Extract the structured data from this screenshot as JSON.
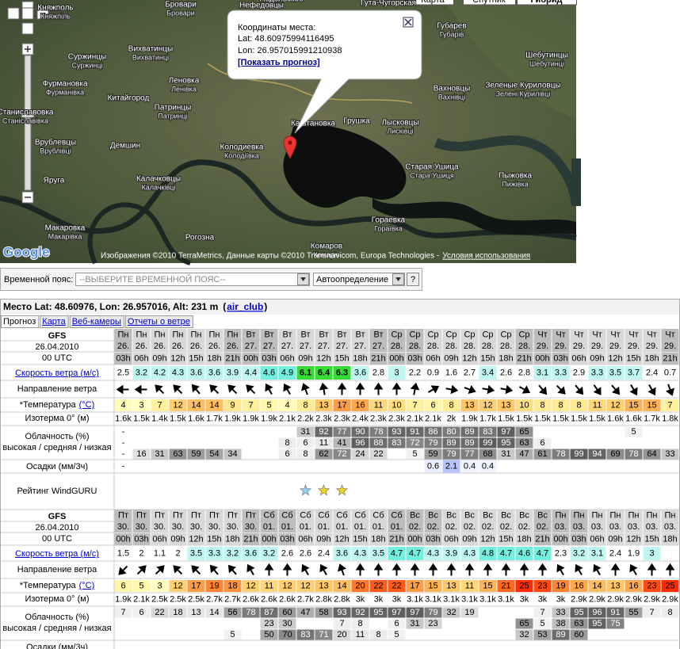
{
  "map": {
    "buttons": [
      "Карта",
      "Спутник",
      "Гибрид"
    ],
    "places": [
      {
        "name": "Княжполь",
        "local": "Княжпіль"
      },
      {
        "name": "Бровари",
        "local": "Бровари"
      },
      {
        "name": "Нефедовцы",
        "local": "Нефедівці"
      },
      {
        "name": "Подольское"
      },
      {
        "name": "Гута-Чугорская"
      },
      {
        "name": "Губарев",
        "local": "Губарів"
      },
      {
        "name": "Вихватинцы",
        "local": "Вихватинці"
      },
      {
        "name": "Суржинцы",
        "local": "Суржинці"
      },
      {
        "name": "Шебутинцы",
        "local": "Шебутинці"
      },
      {
        "name": "Фурмановка",
        "local": "Фурманівка"
      },
      {
        "name": "Леновка",
        "local": "Ленівка"
      },
      {
        "name": "Вахновцы",
        "local": "Вахнівці"
      },
      {
        "name": "Зеленые Куриловцы",
        "local": "Зелені Курилівці"
      },
      {
        "name": "Китайгород"
      },
      {
        "name": "Патринцы",
        "local": "Патринці"
      },
      {
        "name": "Станиславовка",
        "local": "Станіславівка"
      },
      {
        "name": "Врублевцы",
        "local": "Врублівці"
      },
      {
        "name": "Демшин"
      },
      {
        "name": "Колодиевка",
        "local": "Колодіївка"
      },
      {
        "name": "Каштановка"
      },
      {
        "name": "Грушка"
      },
      {
        "name": "Лысковцы",
        "local": "Лисківці"
      },
      {
        "name": "Старая Ушица",
        "local": "Стара Ушиця"
      },
      {
        "name": "Пыжовка",
        "local": "Пижівка"
      },
      {
        "name": "Яруга"
      },
      {
        "name": "Калачковцы",
        "local": "Калачківці"
      },
      {
        "name": "Гораевка",
        "local": "Гораївка"
      },
      {
        "name": "Макаровка",
        "local": "Макарівка"
      },
      {
        "name": "Рогозна"
      },
      {
        "name": "Комаров",
        "local": "Комарів"
      }
    ],
    "popup": {
      "title": "Координаты места:",
      "lat": "Lat: 48.60975994116495",
      "lon": "Lon: 26.957015991210938",
      "link": "[Показать прогноз]"
    },
    "logo": "Google",
    "attribution": "Изображения ©2010 TerraMetrics, Данные карты ©2010 Transnavicom, Europa Technologies -",
    "terms": "Условия использования"
  },
  "timezone": {
    "label": "Временной пояс:",
    "select": "--ВЫБЕРИТЕ ВРЕМЕННОЙ ПОЯС--",
    "auto": "Автоопределение",
    "help": "?"
  },
  "forecast": {
    "header": "Место Lat: 48.60976, Lon: 26.957016, Alt: 231 m",
    "link_open": "(",
    "link": "air_club",
    "link_close": ")",
    "tabs": [
      "Прогноз",
      "Карта",
      "Веб-камеры",
      "Отчеты о ветре"
    ],
    "row_labels": {
      "wind": "Скорость ветра (м/с)",
      "direction": "Направление ветра",
      "temperature": "*Температура",
      "temperature_unit": "(°C)",
      "isotherm": "Изотерма 0° (м)",
      "cloud_title": "Облачность (%)",
      "cloud_levels": "высокая / средняя / низкая",
      "precipitation": "Осадки (мм/3ч)",
      "rating": "Рейтинг WindGURU"
    },
    "tables": [
      {
        "model": "GFS",
        "date": "26.04.2010",
        "time": "00 UTC",
        "days": [
          "Пн",
          "Пн",
          "Пн",
          "Пн",
          "Пн",
          "Пн",
          "Пн",
          "Вт",
          "Вт",
          "Вт",
          "Вт",
          "Вт",
          "Вт",
          "Вт",
          "Вт",
          "Ср",
          "Ср",
          "Ср",
          "Ср",
          "Ср",
          "Ср",
          "Ср",
          "Ср",
          "Чт",
          "Чт",
          "Чт",
          "Чт",
          "Чт",
          "Чт",
          "Чт",
          "Чт"
        ],
        "dates": [
          "26.",
          "26.",
          "26.",
          "26.",
          "26.",
          "26.",
          "26.",
          "27.",
          "27.",
          "27.",
          "27.",
          "27.",
          "27.",
          "27.",
          "27.",
          "28.",
          "28.",
          "28.",
          "28.",
          "28.",
          "28.",
          "28.",
          "28.",
          "29.",
          "29.",
          "29.",
          "29.",
          "29.",
          "29.",
          "29.",
          "29."
        ],
        "hours": [
          "03h",
          "06h",
          "09h",
          "12h",
          "15h",
          "18h",
          "21h",
          "00h",
          "03h",
          "06h",
          "09h",
          "12h",
          "15h",
          "18h",
          "21h",
          "00h",
          "03h",
          "06h",
          "09h",
          "12h",
          "15h",
          "18h",
          "21h",
          "00h",
          "03h",
          "06h",
          "09h",
          "12h",
          "15h",
          "18h",
          "21h"
        ],
        "wind": [
          2.5,
          3.2,
          4.2,
          4.3,
          3.6,
          3.6,
          3.9,
          4.4,
          4.6,
          4.9,
          6.1,
          6.4,
          6.3,
          3.6,
          2.8,
          3,
          2.2,
          0.9,
          1.6,
          2.7,
          3.4,
          2.6,
          2.8,
          3.1,
          3.3,
          2.9,
          3.3,
          3.5,
          3.7,
          2.4,
          0.7
        ],
        "direction": [
          270,
          270,
          315,
          315,
          320,
          315,
          315,
          315,
          330,
          330,
          340,
          350,
          0,
          0,
          0,
          0,
          10,
          60,
          100,
          110,
          100,
          100,
          120,
          140,
          135,
          140,
          145,
          140,
          150,
          150,
          160
        ],
        "temperature": [
          4,
          3,
          7,
          12,
          14,
          14,
          9,
          7,
          5,
          4,
          8,
          13,
          17,
          16,
          11,
          10,
          7,
          6,
          8,
          13,
          12,
          13,
          10,
          8,
          8,
          8,
          11,
          12,
          15,
          15,
          7
        ],
        "isotherm": [
          "1.6k",
          "1.5k",
          "1.4k",
          "1.5k",
          "1.6k",
          "1.7k",
          "1.9k",
          "1.9k",
          "1.9k",
          "2.1k",
          "2.2k",
          "2.3k",
          "2.3k",
          "2.4k",
          "2.3k",
          "2.3k",
          "2.1k",
          "2.1k",
          "2k",
          "1.9k",
          "1.7k",
          "1.5k",
          "1.5k",
          "1.5k",
          "1.5k",
          "1.5k",
          "1.5k",
          "1.6k",
          "1.6k",
          "1.7k",
          "1.8k"
        ],
        "cloud_high": [
          "-",
          null,
          null,
          null,
          null,
          null,
          null,
          null,
          null,
          null,
          "31",
          "92",
          "77",
          "90",
          "78",
          "93",
          "91",
          "86",
          "80",
          "89",
          "83",
          "97",
          "65",
          null,
          null,
          null,
          null,
          null,
          "5",
          null,
          null
        ],
        "cloud_mid": [
          "-",
          null,
          null,
          null,
          null,
          null,
          null,
          null,
          null,
          "8",
          "6",
          "11",
          "41",
          "96",
          "88",
          "83",
          "72",
          "79",
          "89",
          "89",
          "99",
          "95",
          "63",
          "6",
          null,
          null,
          null,
          null,
          null,
          null,
          null
        ],
        "cloud_low": [
          "-",
          "16",
          "31",
          "63",
          "59",
          "54",
          "34",
          null,
          null,
          "6",
          "8",
          "62",
          "72",
          "24",
          "22",
          null,
          "5",
          "59",
          "79",
          "77",
          "68",
          "31",
          "47",
          "61",
          "78",
          "99",
          "94",
          "69",
          "78",
          "64",
          "33"
        ],
        "precipitation": [
          "-",
          null,
          null,
          null,
          null,
          null,
          null,
          null,
          null,
          null,
          null,
          null,
          null,
          null,
          null,
          null,
          null,
          0.6,
          2.1,
          0.4,
          0.4,
          null,
          null,
          null,
          null,
          null,
          null,
          null,
          null,
          null,
          null
        ],
        "rating": [
          null,
          null,
          null,
          null,
          null,
          null,
          null,
          null,
          null,
          null,
          1,
          2,
          2,
          null,
          null,
          null,
          null,
          null,
          null,
          null,
          null,
          null,
          null,
          null,
          null,
          null,
          null,
          null,
          null,
          null,
          null
        ]
      },
      {
        "model": "GFS",
        "date": "26.04.2010",
        "time": "00 UTC",
        "days": [
          "Пт",
          "Пт",
          "Пт",
          "Пт",
          "Пт",
          "Пт",
          "Пт",
          "Пт",
          "Сб",
          "Сб",
          "Сб",
          "Сб",
          "Сб",
          "Сб",
          "Сб",
          "Сб",
          "Вс",
          "Вс",
          "Вс",
          "Вс",
          "Вс",
          "Вс",
          "Вс",
          "Вс",
          "Пн",
          "Пн",
          "Пн",
          "Пн",
          "Пн",
          "Пн",
          "Пн"
        ],
        "dates": [
          "30.",
          "30.",
          "30.",
          "30.",
          "30.",
          "30.",
          "30.",
          "30.",
          "01.",
          "01.",
          "01.",
          "01.",
          "01.",
          "01.",
          "01.",
          "01.",
          "02.",
          "02.",
          "02.",
          "02.",
          "02.",
          "02.",
          "02.",
          "02.",
          "03.",
          "03.",
          "03.",
          "03.",
          "03.",
          "03.",
          "03."
        ],
        "hours": [
          "00h",
          "03h",
          "06h",
          "09h",
          "12h",
          "15h",
          "18h",
          "21h",
          "00h",
          "03h",
          "06h",
          "09h",
          "12h",
          "15h",
          "18h",
          "21h",
          "00h",
          "03h",
          "06h",
          "09h",
          "12h",
          "15h",
          "18h",
          "21h",
          "00h",
          "03h",
          "06h",
          "09h",
          "12h",
          "15h",
          "18h"
        ],
        "wind": [
          1.5,
          2,
          1.1,
          2,
          3.5,
          3.3,
          3.2,
          3.6,
          3.2,
          2.6,
          2.6,
          2.4,
          3.6,
          4.3,
          3.5,
          4.7,
          4.7,
          4.3,
          3.9,
          4.3,
          4.8,
          4.7,
          4.6,
          4.7,
          2.3,
          3.2,
          3.1,
          2.4,
          1.9,
          3,
          null
        ],
        "direction": [
          225,
          45,
          45,
          315,
          315,
          320,
          320,
          330,
          0,
          0,
          330,
          330,
          340,
          0,
          0,
          0,
          0,
          0,
          0,
          0,
          0,
          0,
          0,
          0,
          330,
          330,
          330,
          0,
          330,
          0,
          0
        ],
        "temperature": [
          6,
          5,
          3,
          12,
          17,
          19,
          18,
          12,
          11,
          12,
          12,
          13,
          14,
          20,
          22,
          22,
          17,
          15,
          13,
          11,
          15,
          21,
          25,
          23,
          19,
          16,
          14,
          13,
          16,
          23,
          25
        ],
        "isotherm": [
          "1.9k",
          "2.1k",
          "2.5k",
          "2.5k",
          "2.5k",
          "2.7k",
          "2.7k",
          "2.6k",
          "2.6k",
          "2.6k",
          "2.7k",
          "2.8k",
          "2.8k",
          "3k",
          "3k",
          "3k",
          "3.1k",
          "3.1k",
          "3.1k",
          "3.1k",
          "3.1k",
          "3.1k",
          "3k",
          "3k",
          "3k",
          "2.9k",
          "2.9k",
          "2.9k",
          "2.9k",
          "2.9k",
          "2.9k"
        ],
        "cloud_high": [
          "7",
          "6",
          "22",
          "18",
          "13",
          "14",
          "56",
          "78",
          "87",
          "60",
          "47",
          "58",
          "93",
          "92",
          "95",
          "97",
          "97",
          "79",
          "32",
          "19",
          null,
          null,
          null,
          "7",
          "33",
          "95",
          "96",
          "91",
          "55",
          "7",
          "8"
        ],
        "cloud_mid": [
          null,
          null,
          null,
          null,
          null,
          null,
          null,
          null,
          "23",
          "30",
          null,
          null,
          "7",
          "8",
          null,
          "6",
          "31",
          "23",
          null,
          null,
          null,
          null,
          "65",
          "5",
          "38",
          "63",
          "95",
          "75",
          null,
          null,
          null
        ],
        "cloud_low": [
          null,
          null,
          null,
          null,
          null,
          null,
          "5",
          null,
          "50",
          "70",
          "83",
          "71",
          "20",
          "11",
          "8",
          "5",
          null,
          null,
          null,
          null,
          null,
          null,
          "32",
          "53",
          "89",
          "60",
          null,
          null,
          null,
          null,
          null
        ]
      }
    ]
  }
}
